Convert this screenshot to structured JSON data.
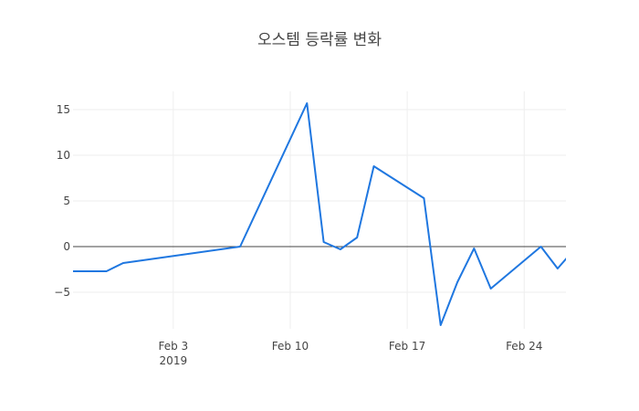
{
  "chart_data": {
    "type": "line",
    "title": "오스템 등락률 변화",
    "xlabel": "",
    "ylabel": "",
    "x_range": [
      "2019-01-28",
      "2019-02-26"
    ],
    "y_range": [
      -9,
      17
    ],
    "grid": true,
    "zero_line": true,
    "y_ticks": [
      15,
      10,
      5,
      0,
      -5
    ],
    "y_tick_labels": [
      "15",
      "10",
      "5",
      "0",
      "−5"
    ],
    "x_ticks": [
      {
        "date": "2019-02-03",
        "label": "Feb 3",
        "sublabel": "2019"
      },
      {
        "date": "2019-02-10",
        "label": "Feb 10",
        "sublabel": ""
      },
      {
        "date": "2019-02-17",
        "label": "Feb 17",
        "sublabel": ""
      },
      {
        "date": "2019-02-24",
        "label": "Feb 24",
        "sublabel": ""
      }
    ],
    "series": [
      {
        "color": "#1f77e0",
        "x": [
          "2019-01-28",
          "2019-01-30",
          "2019-01-31",
          "2019-02-07",
          "2019-02-11",
          "2019-02-12",
          "2019-02-13",
          "2019-02-14",
          "2019-02-15",
          "2019-02-18",
          "2019-02-19",
          "2019-02-20",
          "2019-02-21",
          "2019-02-22",
          "2019-02-25",
          "2019-02-26",
          "2019-02-27"
        ],
        "y": [
          -2.7,
          -2.7,
          -1.8,
          0.0,
          15.7,
          0.5,
          -0.3,
          1.0,
          8.8,
          5.3,
          -8.6,
          -3.9,
          -0.2,
          -4.6,
          0.0,
          -2.4,
          -0.3
        ]
      }
    ]
  }
}
